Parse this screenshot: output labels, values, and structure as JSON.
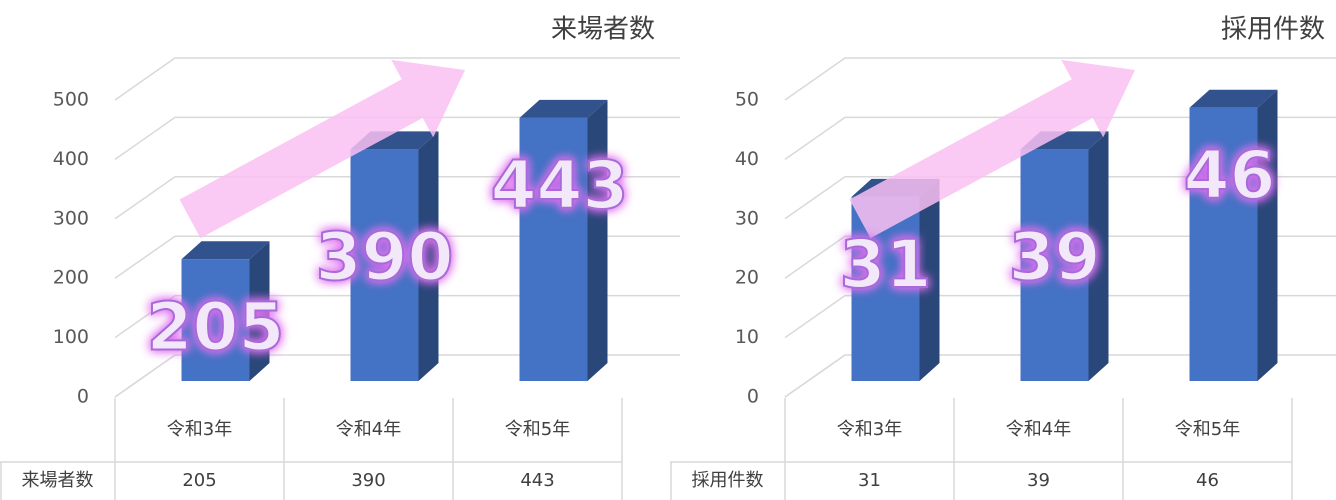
{
  "chart_data": [
    {
      "type": "bar",
      "title": "来場者数",
      "categories": [
        "令和3年",
        "令和4年",
        "令和5年"
      ],
      "series": [
        {
          "name": "来場者数",
          "color": "#4472c4",
          "values": [
            205,
            390,
            443
          ]
        }
      ],
      "ylim": [
        0,
        500
      ],
      "yticks": [
        0,
        100,
        200,
        300,
        400,
        500
      ],
      "grid": true
    },
    {
      "type": "bar",
      "title": "採用件数",
      "categories": [
        "令和3年",
        "令和4年",
        "令和5年"
      ],
      "series": [
        {
          "name": "採用件数",
          "color": "#4472c4",
          "values": [
            31,
            39,
            46
          ]
        }
      ],
      "ylim": [
        0,
        50
      ],
      "yticks": [
        0,
        10,
        20,
        30,
        40,
        50
      ],
      "grid": true
    }
  ]
}
